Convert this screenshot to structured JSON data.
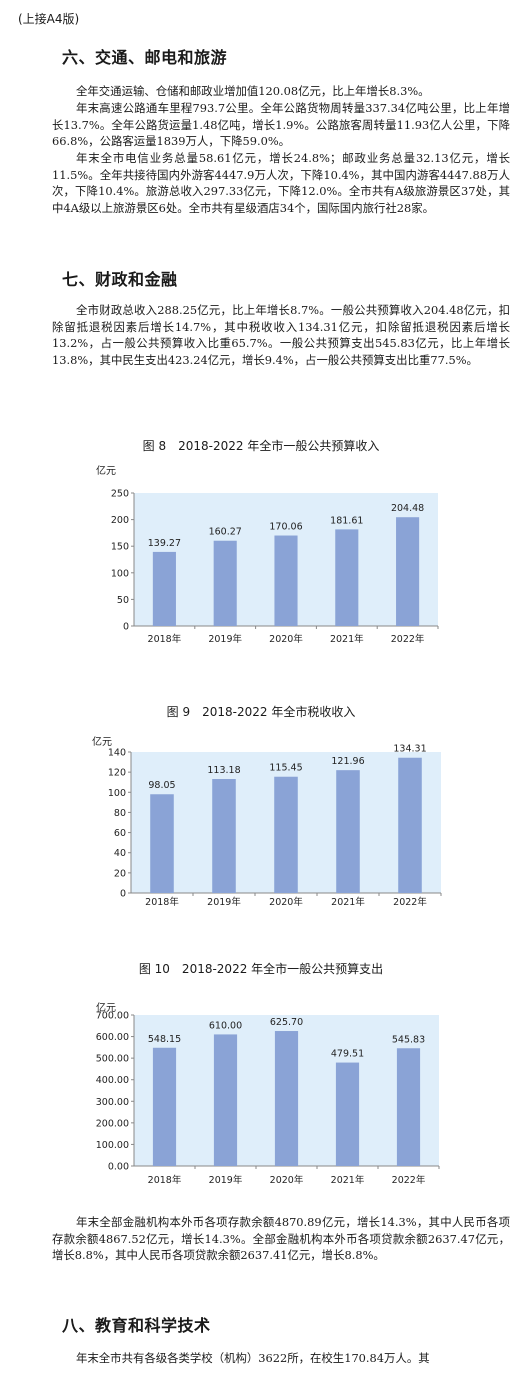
{
  "continuation_note": "(上接A4版)",
  "sections": [
    {
      "heading": "六、交通、邮电和旅游",
      "paragraphs": [
        "全年交通运输、仓储和邮政业增加值120.08亿元，比上年增长8.3%。",
        "年末高速公路通车里程793.7公里。全年公路货物周转量337.34亿吨公里，比上年增长13.7%。全年公路货运量1.48亿吨，增长1.9%。公路旅客周转量11.93亿人公里，下降66.8%，公路客运量1839万人，下降59.0%。",
        "年末全市电信业务总量58.61亿元，增长24.8%；邮政业务总量32.13亿元，增长11.5%。全年共接待国内外游客4447.9万人次，下降10.4%，其中国内游客4447.88万人次，下降10.4%。旅游总收入297.33亿元，下降12.0%。全市共有A级旅游景区37处，其中4A级以上旅游景区6处。全市共有星级酒店34个，国际国内旅行社28家。"
      ]
    },
    {
      "heading": "七、财政和金融",
      "paragraphs": [
        "全市财政总收入288.25亿元，比上年增长8.7%。一般公共预算收入204.48亿元，扣除留抵退税因素后增长14.7%，其中税收收入134.31亿元，扣除留抵退税因素后增长13.2%，占一般公共预算收入比重65.7%。一般公共预算支出545.83亿元，比上年增长13.8%，其中民生支出423.24亿元，增长9.4%，占一般公共预算支出比重77.5%。"
      ]
    },
    {
      "paragraphs": [
        "年末全部金融机构本外币各项存款余额4870.89亿元，增长14.3%，其中人民币各项存款余额4867.52亿元，增长14.3%。全部金融机构本外币各项贷款余额2637.47亿元，增长8.8%，其中人民币各项贷款余额2637.41亿元，增长8.8%。"
      ]
    },
    {
      "heading": "八、教育和科学技术",
      "paragraphs": [
        "年末全市共有各级各类学校（机构）3622所，在校生170.84万人。其"
      ]
    }
  ],
  "chart_data": [
    {
      "type": "bar",
      "title": "图 8　2018-2022 年全市一般公共预算收入",
      "ylabel": "亿元",
      "categories": [
        "2018年",
        "2019年",
        "2020年",
        "2021年",
        "2022年"
      ],
      "values": [
        139.27,
        160.27,
        170.06,
        181.61,
        204.48
      ],
      "value_labels": [
        "139.27",
        "160.27",
        "170.06",
        "181.61",
        "204.48"
      ],
      "ylim": [
        0,
        250
      ],
      "yticks": [
        0,
        50,
        100,
        150,
        200,
        250
      ],
      "ytick_labels": [
        "0",
        "50",
        "100",
        "150",
        "200",
        "250"
      ],
      "grid": false,
      "bar_color": "#8aa3d6",
      "plot_bg": "#dfeefa"
    },
    {
      "type": "bar",
      "title": "图 9　2018-2022 年全市税收收入",
      "ylabel": "亿元",
      "categories": [
        "2018年",
        "2019年",
        "2020年",
        "2021年",
        "2022年"
      ],
      "values": [
        98.05,
        113.18,
        115.45,
        121.96,
        134.31
      ],
      "value_labels": [
        "98.05",
        "113.18",
        "115.45",
        "121.96",
        "134.31"
      ],
      "ylim": [
        0,
        140
      ],
      "yticks": [
        0,
        20,
        40,
        60,
        80,
        100,
        120,
        140
      ],
      "ytick_labels": [
        "0",
        "20",
        "40",
        "60",
        "80",
        "100",
        "120",
        "140"
      ],
      "grid": false,
      "bar_color": "#8aa3d6",
      "plot_bg": "#dfeefa"
    },
    {
      "type": "bar",
      "title": "图 10　2018-2022 年全市一般公共预算支出",
      "ylabel": "亿元",
      "categories": [
        "2018年",
        "2019年",
        "2020年",
        "2021年",
        "2022年"
      ],
      "values": [
        548.15,
        610.0,
        625.7,
        479.51,
        545.83
      ],
      "value_labels": [
        "548.15",
        "610.00",
        "625.70",
        "479.51",
        "545.83"
      ],
      "ylim": [
        0,
        700
      ],
      "yticks": [
        0,
        100,
        200,
        300,
        400,
        500,
        600,
        700
      ],
      "ytick_labels": [
        "0.00",
        "100.00",
        "200.00",
        "300.00",
        "400.00",
        "500.00",
        "600.00",
        "700.00"
      ],
      "grid": false,
      "bar_color": "#8aa3d6",
      "plot_bg": "#dfeefa"
    }
  ]
}
